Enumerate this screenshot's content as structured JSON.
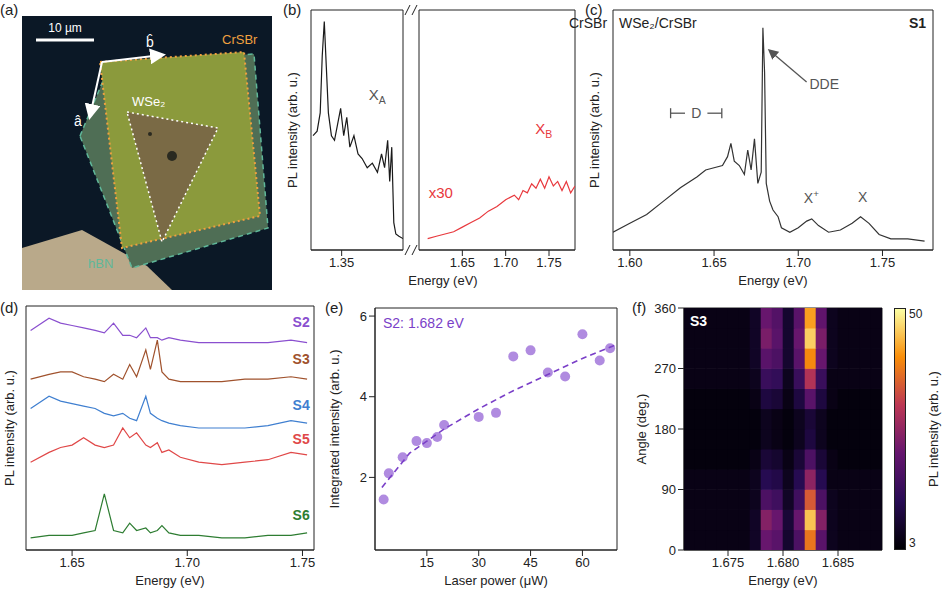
{
  "micrograph": {
    "label": "(a)",
    "scale_bar": "10 µm",
    "crystal": "CrSBr",
    "monolayer": "WSe₂",
    "encapsulation": "hBN",
    "axis_a": "â",
    "axis_b": "b̂"
  },
  "chart_data": [
    {
      "label": "(b)",
      "type": "line",
      "title": "CrSBr",
      "x_label": "Energy (eV)",
      "y_label": "PL intensity (arb. u.)",
      "tick_labels": "x",
      "ylim": [
        0,
        1.05
      ],
      "segments": [
        {
          "xlim": [
            1.32,
            1.41
          ],
          "xticks": [
            1.35
          ],
          "series": [
            {
              "color": "#1a1a1a",
              "x": [
                1.322,
                1.326,
                1.329,
                1.331,
                1.333,
                1.335,
                1.337,
                1.34,
                1.343,
                1.346,
                1.349,
                1.352,
                1.355,
                1.358,
                1.362,
                1.366,
                1.37,
                1.375,
                1.38,
                1.385,
                1.389,
                1.392,
                1.395,
                1.397,
                1.399,
                1.401,
                1.403,
                1.406,
                1.41
              ],
              "values": [
                0.5,
                0.52,
                0.6,
                0.85,
                1.0,
                0.8,
                0.6,
                0.5,
                0.48,
                0.55,
                0.62,
                0.5,
                0.58,
                0.45,
                0.5,
                0.42,
                0.4,
                0.36,
                0.38,
                0.34,
                0.42,
                0.36,
                0.48,
                0.3,
                0.45,
                0.12,
                0.07,
                0.06,
                0.05
              ]
            }
          ]
        },
        {
          "xlim": [
            1.6,
            1.78
          ],
          "xticks": [
            1.65,
            {
              "value": 1.7,
              "label": "1.70"
            },
            1.75
          ],
          "series": [
            {
              "color": "#e8383d",
              "x": [
                1.61,
                1.62,
                1.63,
                1.64,
                1.65,
                1.66,
                1.67,
                1.68,
                1.69,
                1.7,
                1.71,
                1.715,
                1.72,
                1.725,
                1.73,
                1.735,
                1.74,
                1.745,
                1.75,
                1.755,
                1.76,
                1.765,
                1.77,
                1.775,
                1.78
              ],
              "values": [
                0.05,
                0.06,
                0.07,
                0.08,
                0.1,
                0.12,
                0.14,
                0.17,
                0.19,
                0.22,
                0.24,
                0.22,
                0.26,
                0.25,
                0.29,
                0.27,
                0.31,
                0.27,
                0.32,
                0.28,
                0.3,
                0.26,
                0.3,
                0.25,
                0.28
              ]
            }
          ]
        }
      ],
      "annotations": [
        {
          "text": "X",
          "sub": "A",
          "color": "#555555"
        },
        {
          "text": "X",
          "sub": "B",
          "color": "#e8383d"
        },
        {
          "text": "x30",
          "color": "#e8383d"
        }
      ]
    },
    {
      "label": "(c)",
      "type": "line",
      "title": "WSe₂/CrSBr",
      "subtitle": "S1",
      "x_label": "Energy (eV)",
      "y_label": "PL intensity (arb. u.)",
      "tick_labels": "x",
      "color": "#333333",
      "xlim": [
        1.59,
        1.78
      ],
      "xticks": [
        {
          "value": 1.6,
          "label": "1.60"
        },
        1.65,
        {
          "value": 1.7,
          "label": "1.70"
        },
        1.75
      ],
      "ylim": [
        0,
        1.08
      ],
      "x": [
        1.59,
        1.6,
        1.61,
        1.62,
        1.63,
        1.64,
        1.645,
        1.65,
        1.655,
        1.658,
        1.66,
        1.662,
        1.665,
        1.668,
        1.67,
        1.672,
        1.674,
        1.676,
        1.678,
        1.679,
        1.68,
        1.681,
        1.683,
        1.685,
        1.688,
        1.69,
        1.695,
        1.7,
        1.705,
        1.708,
        1.712,
        1.718,
        1.725,
        1.732,
        1.737,
        1.742,
        1.748,
        1.755,
        1.765,
        1.775
      ],
      "values": [
        0.08,
        0.12,
        0.16,
        0.22,
        0.28,
        0.33,
        0.36,
        0.37,
        0.38,
        0.42,
        0.48,
        0.4,
        0.38,
        0.34,
        0.45,
        0.36,
        0.5,
        0.3,
        0.35,
        1.0,
        0.8,
        0.3,
        0.22,
        0.18,
        0.15,
        0.1,
        0.08,
        0.1,
        0.13,
        0.14,
        0.11,
        0.08,
        0.09,
        0.12,
        0.15,
        0.12,
        0.07,
        0.05,
        0.05,
        0.04
      ],
      "annotations": [
        {
          "text": "D",
          "color": "#555555"
        },
        {
          "text": "DDE",
          "color": "#555555"
        },
        {
          "text": "X",
          "sup": "+",
          "color": "#555555"
        },
        {
          "text": "X",
          "color": "#555555"
        }
      ]
    },
    {
      "label": "(d)",
      "type": "line",
      "x_label": "Energy (eV)",
      "y_label": "PL intensity (arb. u.)",
      "tick_labels": "x",
      "xlim": [
        1.63,
        1.755
      ],
      "xticks": [
        1.65,
        {
          "value": 1.7,
          "label": "1.70"
        },
        1.75
      ],
      "ylim": [
        0,
        10
      ],
      "x": [
        1.632,
        1.64,
        1.645,
        1.65,
        1.655,
        1.66,
        1.664,
        1.668,
        1.672,
        1.675,
        1.678,
        1.682,
        1.684,
        1.687,
        1.689,
        1.692,
        1.697,
        1.705,
        1.715,
        1.725,
        1.735,
        1.745,
        1.752
      ],
      "series": [
        {
          "name": "S2",
          "color": "#8a4fcf",
          "values": [
            9.0,
            9.5,
            9.3,
            9.2,
            9.1,
            9.0,
            8.9,
            9.3,
            8.8,
            8.8,
            8.7,
            9.1,
            8.7,
            8.7,
            8.6,
            8.7,
            8.6,
            8.5,
            8.5,
            8.5,
            8.5,
            8.6,
            8.5
          ]
        },
        {
          "name": "S3",
          "color": "#a0522d",
          "values": [
            7.0,
            7.2,
            7.3,
            7.3,
            7.1,
            7.0,
            6.9,
            7.2,
            7.0,
            7.6,
            7.1,
            8.2,
            7.4,
            8.6,
            7.3,
            7.0,
            6.9,
            6.9,
            6.9,
            7.0,
            7.0,
            7.1,
            7.0
          ]
        },
        {
          "name": "S4",
          "color": "#3f7fd0",
          "values": [
            5.8,
            6.3,
            6.1,
            6.0,
            5.9,
            5.8,
            5.6,
            5.5,
            5.6,
            5.4,
            5.3,
            6.3,
            5.6,
            5.4,
            5.3,
            5.2,
            5.1,
            5.0,
            5.0,
            5.0,
            5.1,
            5.3,
            5.2
          ]
        },
        {
          "name": "S5",
          "color": "#e04848",
          "values": [
            3.6,
            4.0,
            4.2,
            4.3,
            4.6,
            4.3,
            4.2,
            4.3,
            5.0,
            4.6,
            4.8,
            4.3,
            4.2,
            4.4,
            4.0,
            4.1,
            3.8,
            3.6,
            3.5,
            3.6,
            3.7,
            4.0,
            3.9
          ]
        },
        {
          "name": "S6",
          "color": "#2e7d32",
          "values": [
            0.5,
            0.6,
            0.6,
            0.6,
            0.7,
            0.8,
            2.3,
            0.8,
            0.7,
            1.1,
            0.8,
            0.9,
            0.7,
            0.8,
            1.0,
            0.7,
            0.6,
            0.6,
            0.5,
            0.5,
            0.6,
            0.6,
            0.7
          ]
        }
      ]
    },
    {
      "label": "(e)",
      "type": "scatter",
      "x_label": "Laser power (μW)",
      "y_label": "Integrated intensity (arb. u.)",
      "xlim": [
        0,
        70
      ],
      "xticks": [
        15,
        30,
        45,
        60
      ],
      "ylim": [
        0.2,
        6.2
      ],
      "yticks": [
        2,
        4,
        6
      ],
      "annotations": [
        {
          "text": "S2: 1.682 eV",
          "color": "#7a3fc8"
        }
      ],
      "series": [
        {
          "type": "scatter",
          "marker": "circle",
          "color": "#b08be0",
          "x": [
            2.5,
            4,
            8,
            12,
            15,
            18,
            20,
            30,
            35,
            40,
            45,
            50,
            55,
            60,
            65,
            68
          ],
          "values": [
            1.45,
            2.1,
            2.5,
            2.9,
            2.85,
            3.0,
            3.3,
            3.5,
            3.6,
            5.0,
            5.15,
            4.6,
            4.5,
            5.55,
            4.9,
            5.2
          ]
        },
        {
          "type": "line",
          "line_style": "dashed",
          "color": "#7a3fc8",
          "x": [
            2,
            10,
            20,
            30,
            40,
            50,
            60,
            70
          ],
          "values": [
            1.75,
            2.6,
            3.2,
            3.7,
            4.15,
            4.55,
            4.95,
            5.3
          ]
        }
      ]
    },
    {
      "label": "(f)",
      "type": "heatmap",
      "title": "S3",
      "x_label": "Energy (eV)",
      "y_label": "Angle (deg.)",
      "xlim": [
        1.671,
        1.689
      ],
      "xticks": [
        1.675,
        {
          "value": 1.68,
          "label": "1.680"
        },
        1.685
      ],
      "ylim": [
        0,
        360
      ],
      "yticks": [
        0,
        90,
        180,
        270,
        360
      ],
      "x": [
        1.6715,
        1.6725,
        1.6735,
        1.6745,
        1.6755,
        1.6765,
        1.6775,
        1.6785,
        1.6795,
        1.6805,
        1.6815,
        1.6825,
        1.6835,
        1.6845,
        1.6855,
        1.6865,
        1.6875,
        1.6885
      ],
      "y": [
        15,
        45,
        75,
        105,
        135,
        165,
        195,
        225,
        255,
        285,
        315,
        345
      ],
      "values": [
        [
          5,
          5,
          5,
          5,
          5,
          5,
          7,
          22,
          20,
          8,
          18,
          38,
          20,
          6,
          5,
          5,
          5,
          5
        ],
        [
          5,
          5,
          5,
          5,
          5,
          5,
          7,
          25,
          22,
          9,
          22,
          45,
          25,
          6,
          5,
          5,
          5,
          5
        ],
        [
          5,
          5,
          5,
          5,
          5,
          5,
          6,
          18,
          16,
          7,
          16,
          35,
          18,
          6,
          5,
          5,
          5,
          5
        ],
        [
          5,
          5,
          5,
          5,
          5,
          5,
          6,
          12,
          11,
          6,
          12,
          26,
          12,
          5,
          5,
          5,
          5,
          5
        ],
        [
          4,
          4,
          4,
          4,
          4,
          4,
          5,
          9,
          8,
          5,
          9,
          18,
          9,
          5,
          4,
          4,
          4,
          4
        ],
        [
          4,
          4,
          4,
          4,
          4,
          4,
          4,
          6,
          5,
          4,
          6,
          10,
          6,
          4,
          4,
          4,
          4,
          4
        ],
        [
          4,
          4,
          4,
          4,
          4,
          4,
          4,
          6,
          5,
          4,
          6,
          9,
          6,
          4,
          4,
          4,
          4,
          4
        ],
        [
          4,
          4,
          4,
          4,
          4,
          4,
          5,
          10,
          9,
          5,
          10,
          20,
          10,
          5,
          4,
          4,
          4,
          4
        ],
        [
          5,
          5,
          5,
          5,
          5,
          5,
          6,
          15,
          14,
          6,
          15,
          30,
          15,
          5,
          5,
          5,
          5,
          5
        ],
        [
          5,
          5,
          5,
          5,
          5,
          5,
          7,
          20,
          18,
          8,
          20,
          40,
          22,
          6,
          5,
          5,
          5,
          5
        ],
        [
          5,
          5,
          5,
          5,
          5,
          5,
          7,
          24,
          20,
          8,
          22,
          46,
          24,
          6,
          5,
          5,
          5,
          5
        ],
        [
          5,
          5,
          5,
          5,
          5,
          5,
          7,
          22,
          19,
          8,
          20,
          42,
          21,
          6,
          5,
          5,
          5,
          5
        ]
      ],
      "dashed_lines": [
        1.6782,
        1.6797,
        1.6811,
        1.6822
      ],
      "colorbar": {
        "range": [
          3,
          50
        ],
        "ticks": [
          3,
          50
        ],
        "label": "PL intensity (arb. u.)"
      }
    }
  ]
}
